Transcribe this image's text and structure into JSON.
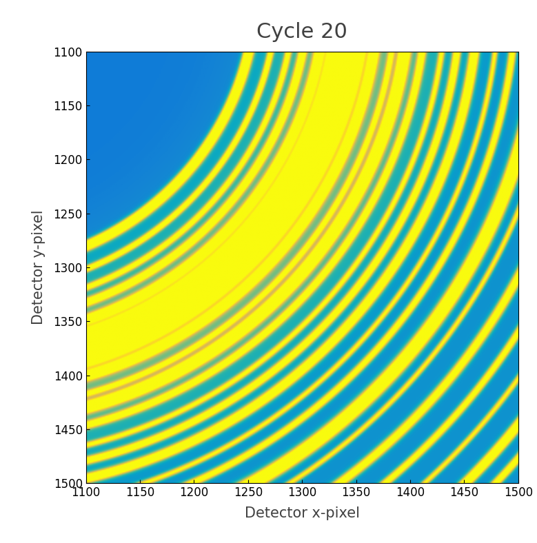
{
  "chart_data": {
    "type": "heatmap",
    "title": "Cycle 20",
    "x_label": "Detector x-pixel",
    "y_label": "Detector y-pixel",
    "xlim": [
      1100,
      1500
    ],
    "ylim": [
      1500,
      1100
    ],
    "xticks": [
      1100,
      1150,
      1200,
      1250,
      1300,
      1350,
      1400,
      1450,
      1500
    ],
    "yticks": [
      1100,
      1150,
      1200,
      1250,
      1300,
      1350,
      1400,
      1450,
      1500
    ],
    "ring_center": [
      995,
      1040
    ],
    "background": 0.22,
    "outer_background": 0.3,
    "inner_edge": 262,
    "color_range": [
      0,
      1
    ],
    "rings": {
      "radius": [
        262,
        282,
        298,
        311,
        326,
        340,
        350,
        360,
        376,
        392,
        404,
        420,
        438,
        452,
        468,
        487,
        503,
        528,
        546,
        572,
        598,
        622,
        648,
        668,
        690,
        360
      ],
      "width": [
        3.0,
        2.0,
        2.0,
        2.5,
        3.0,
        4.0,
        3.0,
        4.5,
        3.0,
        2.0,
        3.5,
        2.5,
        2.0,
        2.5,
        3.0,
        2.0,
        2.5,
        4.0,
        2.0,
        3.0,
        2.5,
        2.0,
        3.0,
        2.5,
        2.0,
        55.0
      ],
      "intensity": [
        1.5,
        0.9,
        0.8,
        1.0,
        1.1,
        1.6,
        1.2,
        1.8,
        1.1,
        0.7,
        1.4,
        0.9,
        0.7,
        1.0,
        1.2,
        0.7,
        0.9,
        1.6,
        0.7,
        1.0,
        0.9,
        0.7,
        1.3,
        1.0,
        0.8,
        0.3
      ]
    }
  }
}
